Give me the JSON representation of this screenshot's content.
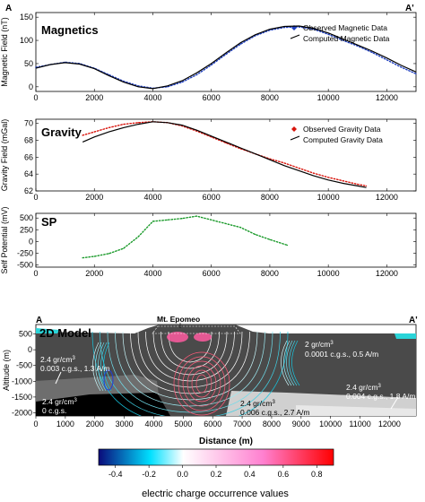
{
  "corner_labels": {
    "left": "A",
    "right": "A'"
  },
  "chart_data": [
    {
      "type": "line",
      "title": "Magnetics",
      "ylabel": "Magnetic Field (nT)",
      "xlim": [
        0,
        13000
      ],
      "ylim": [
        -10,
        160
      ],
      "xticks": [
        "0",
        "2000",
        "4000",
        "6000",
        "8000",
        "10000",
        "12000"
      ],
      "yticks": [
        "0",
        "50",
        "100",
        "150"
      ],
      "legend_position": "top-right",
      "series": [
        {
          "name": "Observed Magnetic Data",
          "style": "dots",
          "color": "#1f3fbf",
          "x": [
            0,
            500,
            1000,
            1500,
            2000,
            2500,
            3000,
            3500,
            4000,
            4500,
            5000,
            5500,
            6000,
            6500,
            7000,
            7500,
            8000,
            8500,
            9000,
            9500,
            10000,
            10500,
            11000,
            11500,
            12000,
            12500,
            13000
          ],
          "y": [
            42,
            48,
            53,
            50,
            40,
            26,
            12,
            2,
            -3,
            0,
            10,
            26,
            47,
            70,
            92,
            110,
            122,
            128,
            129,
            124,
            113,
            100,
            88,
            74,
            58,
            42,
            28
          ]
        },
        {
          "name": "Computed Magnetic Data",
          "style": "solid",
          "color": "#000000",
          "x": [
            0,
            500,
            1000,
            1500,
            2000,
            2500,
            3000,
            3500,
            4000,
            4500,
            5000,
            5500,
            6000,
            6500,
            7000,
            7500,
            8000,
            8500,
            9000,
            9500,
            10000,
            10500,
            11000,
            11500,
            12000,
            12500,
            13000
          ],
          "y": [
            40,
            48,
            52,
            49,
            39,
            24,
            10,
            0,
            -4,
            2,
            13,
            30,
            50,
            73,
            95,
            112,
            124,
            130,
            131,
            126,
            116,
            103,
            90,
            77,
            62,
            46,
            32
          ]
        }
      ]
    },
    {
      "type": "line",
      "title": "Gravity",
      "ylabel": "Gravity Field (mGal)",
      "xlim": [
        0,
        13000
      ],
      "ylim": [
        62,
        70.5
      ],
      "xticks": [
        "0",
        "2000",
        "4000",
        "6000",
        "8000",
        "10000",
        "12000"
      ],
      "yticks": [
        "62",
        "64",
        "66",
        "68",
        "70"
      ],
      "legend_position": "top-right",
      "series": [
        {
          "name": "Observed Gravity Data",
          "style": "dots",
          "color": "#d8140c",
          "x": [
            1600,
            2000,
            2500,
            3000,
            3500,
            4000,
            4500,
            5000,
            5500,
            6000,
            6500,
            7000,
            7500,
            8000,
            8500,
            9000,
            9500,
            10000,
            10500,
            11000,
            11300
          ],
          "y": [
            68.6,
            69.0,
            69.5,
            69.9,
            70.1,
            70.2,
            70.1,
            69.7,
            69.1,
            68.4,
            67.7,
            67.0,
            66.4,
            65.8,
            65.3,
            64.7,
            64.1,
            63.6,
            63.2,
            62.8,
            62.6
          ]
        },
        {
          "name": "Computed Gravity Data",
          "style": "solid",
          "color": "#000000",
          "x": [
            1600,
            2000,
            2500,
            3000,
            3500,
            4000,
            4500,
            5000,
            5500,
            6000,
            6500,
            7000,
            7500,
            8000,
            8500,
            9000,
            9500,
            10000,
            10500,
            11000,
            11300
          ],
          "y": [
            67.8,
            68.4,
            69.0,
            69.5,
            69.9,
            70.2,
            70.1,
            69.8,
            69.2,
            68.5,
            67.8,
            67.1,
            66.4,
            65.7,
            65.0,
            64.4,
            63.8,
            63.3,
            62.9,
            62.6,
            62.4
          ]
        }
      ]
    },
    {
      "type": "line",
      "title": "SP",
      "ylabel": "Self Potential (mV)",
      "xlim": [
        0,
        13000
      ],
      "ylim": [
        -550,
        600
      ],
      "xticks": [
        "0",
        "2000",
        "4000",
        "6000",
        "8000",
        "10000",
        "12000"
      ],
      "yticks": [
        "-500",
        "-250",
        "0",
        "250",
        "500"
      ],
      "series": [
        {
          "name": "SP",
          "style": "dots",
          "color": "#1a9a2a",
          "x": [
            1600,
            2000,
            2500,
            3000,
            3500,
            4000,
            4500,
            5000,
            5500,
            6000,
            6500,
            7000,
            7500,
            8000,
            8600
          ],
          "y": [
            -350,
            -320,
            -260,
            -150,
            100,
            430,
            460,
            490,
            540,
            460,
            380,
            300,
            150,
            40,
            -80
          ]
        }
      ]
    },
    {
      "type": "heatmap",
      "title": "2D Model",
      "ylabel": "Altitude (m)",
      "xlabel": "Distance (m)",
      "xlim": [
        0,
        12900
      ],
      "ylim": [
        -2100,
        800
      ],
      "xticks": [
        "0",
        "1000",
        "2000",
        "3000",
        "4000",
        "5000",
        "6000",
        "7000",
        "8000",
        "9000",
        "10000",
        "11000",
        "12000"
      ],
      "yticks": [
        "-2000",
        "-1500",
        "-1000",
        "-500",
        "0",
        "500"
      ],
      "peak_label": "Mt. Epomeo",
      "colorbar": {
        "label": "electric charge occurrence values",
        "min": -0.5,
        "max": 0.9,
        "ticks": [
          "-0.4",
          "-0.2",
          "0.0",
          "0.2",
          "0.4",
          "0.6",
          "0.8"
        ],
        "colors": [
          "#0a0a7a",
          "#00e0ff",
          "#ffffff",
          "#ff80d0",
          "#ff0000"
        ]
      },
      "annotations": [
        {
          "line1": "2.4 gr/cm",
          "sup": "3",
          "line2": "0.003 c.g.s., 1.3 A/m"
        },
        {
          "line1": "2.4 gr/cm",
          "sup": "3",
          "line2": "0 c.g.s."
        },
        {
          "line1": "2 gr/cm",
          "sup": "3",
          "line2": "0.0001 c.g.s., 0.5 A/m"
        },
        {
          "line1": "2.4 gr/cm",
          "sup": "3",
          "line2": "0.006 c.g.s., 2.7 A/m"
        },
        {
          "line1": "2.4 gr/cm",
          "sup": "3",
          "line2": "0.004 c.g.s., 1.8 A/m"
        }
      ]
    }
  ],
  "colors": {
    "model_dark": "#4a4a4a",
    "model_mid": "#6e6e6e",
    "model_light": "#d0d0d0",
    "sea": "#2ad4d8"
  }
}
